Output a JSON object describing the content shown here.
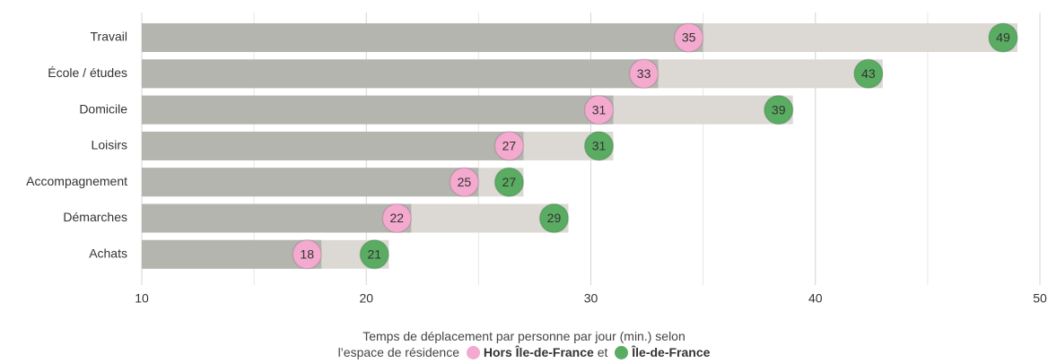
{
  "chart_data": {
    "type": "dumbbell-bar",
    "categories": [
      "Travail",
      "École / études",
      "Domicile",
      "Loisirs",
      "Accompagnement",
      "Démarches",
      "Achats"
    ],
    "series": [
      {
        "name": "Hors Île-de-France",
        "color": "#f4a9cf",
        "bar_color": "#b3b5ae",
        "values": [
          35,
          33,
          31,
          27,
          25,
          22,
          18
        ]
      },
      {
        "name": "Île-de-France",
        "color": "#5aac62",
        "bar_color": "#dcd9d4",
        "values": [
          49,
          43,
          39,
          31,
          27,
          29,
          21
        ]
      }
    ],
    "xlim": [
      10,
      50
    ],
    "xticks": [
      10,
      20,
      30,
      40,
      50
    ],
    "xminor": [
      15,
      25,
      35,
      45
    ],
    "grid": true,
    "xlabel": [
      "Temps de déplacement par personne par jour (min.) selon",
      "l’espace de résidence"
    ],
    "legend_joiner": "et"
  }
}
